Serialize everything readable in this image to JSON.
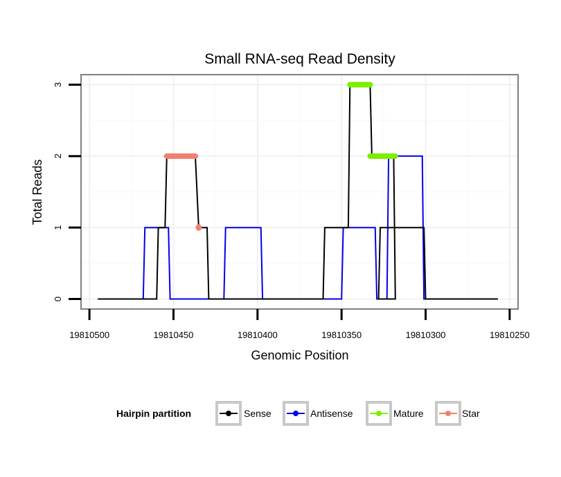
{
  "chart_data": {
    "type": "line",
    "title": "Small RNA-seq Read Density",
    "xlabel": "Genomic Position",
    "ylabel": "Total Reads",
    "xlim": [
      19810505,
      19810245
    ],
    "ylim": [
      -0.14,
      3.14
    ],
    "x_reversed": true,
    "grid": true,
    "x_ticks": [
      19810500,
      19810450,
      19810400,
      19810350,
      19810300,
      19810250
    ],
    "x_tick_labels": [
      "19810500",
      "19810450",
      "19810400",
      "19810350",
      "19810300",
      "19810250"
    ],
    "y_ticks": [
      0,
      1,
      2,
      3
    ],
    "y_tick_labels": [
      "0",
      "1",
      "2",
      "3"
    ],
    "legend": {
      "title": "Hairpin partition",
      "position": "bottom",
      "entries": [
        "Sense",
        "Antisense",
        "Mature",
        "Star"
      ]
    },
    "series": [
      {
        "name": "Antisense",
        "style": "line",
        "color": "#0000ee",
        "x": [
          19810495,
          19810468,
          19810467,
          19810453,
          19810452,
          19810420,
          19810419,
          19810398,
          19810397,
          19810350,
          19810349,
          19810330,
          19810329,
          19810323,
          19810322,
          19810302,
          19810301,
          19810257
        ],
        "y": [
          0,
          0,
          1,
          1,
          0,
          0,
          1,
          1,
          0,
          0,
          1,
          1,
          0,
          0,
          2,
          2,
          0,
          0
        ]
      },
      {
        "name": "Sense",
        "style": "line",
        "color": "#000000",
        "x": [
          19810495,
          19810460,
          19810459,
          19810455,
          19810454,
          19810437,
          19810435,
          19810430,
          19810429,
          19810361,
          19810360,
          19810346,
          19810345,
          19810333,
          19810332,
          19810319,
          19810318,
          19810328,
          19810327,
          19810301,
          19810300,
          19810257
        ],
        "y": [
          0,
          0,
          1,
          1,
          2,
          2,
          1,
          1,
          0,
          0,
          1,
          1,
          3,
          3,
          2,
          2,
          0,
          0,
          1,
          1,
          0,
          0
        ]
      },
      {
        "name": "Mature",
        "style": "thick-segment",
        "color": "#7cee00",
        "segments": [
          {
            "x": [
              19810345,
              19810333
            ],
            "y": 3
          },
          {
            "x": [
              19810333,
              19810318
            ],
            "y": 2
          }
        ]
      },
      {
        "name": "Star",
        "style": "thick-segment",
        "color": "#f08070",
        "segments": [
          {
            "x": [
              19810454,
              19810437
            ],
            "y": 2
          }
        ],
        "points": [
          {
            "x": 19810435,
            "y": 1
          }
        ]
      }
    ]
  }
}
